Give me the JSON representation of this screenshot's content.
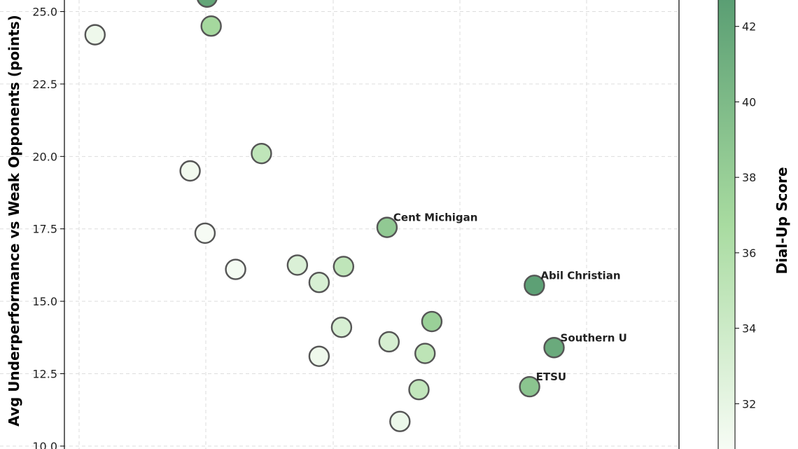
{
  "chart_data": {
    "type": "scatter",
    "ylabel": "Avg Underperformance vs Weak Opponents (points)",
    "colorbar_label": "Dial-Up Score",
    "ylim": [
      9.9,
      25.4
    ],
    "y_ticks": [
      "10.0",
      "12.5",
      "15.0",
      "17.5",
      "20.0",
      "22.5",
      "25.0"
    ],
    "colorbar_ticks": [
      "32",
      "34",
      "36",
      "38",
      "40",
      "42"
    ],
    "colorbar_range": [
      30.8,
      42.7
    ],
    "grid": true,
    "colors": {
      "low": "#f7fcf5",
      "mid": "#a8dba0",
      "high": "#5a9e73",
      "edge": "#555555"
    },
    "points": [
      {
        "x": 0.14,
        "y": 24.2,
        "score": 31.5,
        "label": ""
      },
      {
        "x": 0.305,
        "y": 25.5,
        "score": 42.0,
        "label": ""
      },
      {
        "x": 0.311,
        "y": 24.5,
        "score": 37.0,
        "label": ""
      },
      {
        "x": 0.28,
        "y": 19.5,
        "score": 31.2,
        "label": ""
      },
      {
        "x": 0.385,
        "y": 20.1,
        "score": 35.0,
        "label": ""
      },
      {
        "x": 0.302,
        "y": 17.35,
        "score": 30.9,
        "label": ""
      },
      {
        "x": 0.347,
        "y": 16.1,
        "score": 31.0,
        "label": ""
      },
      {
        "x": 0.438,
        "y": 16.25,
        "score": 33.0,
        "label": ""
      },
      {
        "x": 0.47,
        "y": 15.65,
        "score": 33.2,
        "label": ""
      },
      {
        "x": 0.506,
        "y": 16.2,
        "score": 35.0,
        "label": ""
      },
      {
        "x": 0.57,
        "y": 17.55,
        "score": 38.5,
        "label": "Cent Michigan"
      },
      {
        "x": 0.787,
        "y": 15.55,
        "score": 42.5,
        "label": "Abil Christian"
      },
      {
        "x": 0.503,
        "y": 14.1,
        "score": 33.2,
        "label": ""
      },
      {
        "x": 0.47,
        "y": 13.1,
        "score": 31.4,
        "label": ""
      },
      {
        "x": 0.573,
        "y": 13.6,
        "score": 33.3,
        "label": ""
      },
      {
        "x": 0.636,
        "y": 14.3,
        "score": 37.8,
        "label": ""
      },
      {
        "x": 0.626,
        "y": 13.2,
        "score": 35.2,
        "label": ""
      },
      {
        "x": 0.617,
        "y": 11.95,
        "score": 34.8,
        "label": ""
      },
      {
        "x": 0.589,
        "y": 10.85,
        "score": 31.6,
        "label": ""
      },
      {
        "x": 0.816,
        "y": 13.4,
        "score": 41.5,
        "label": "Southern U"
      },
      {
        "x": 0.78,
        "y": 12.05,
        "score": 39.0,
        "label": "ETSU"
      }
    ]
  }
}
